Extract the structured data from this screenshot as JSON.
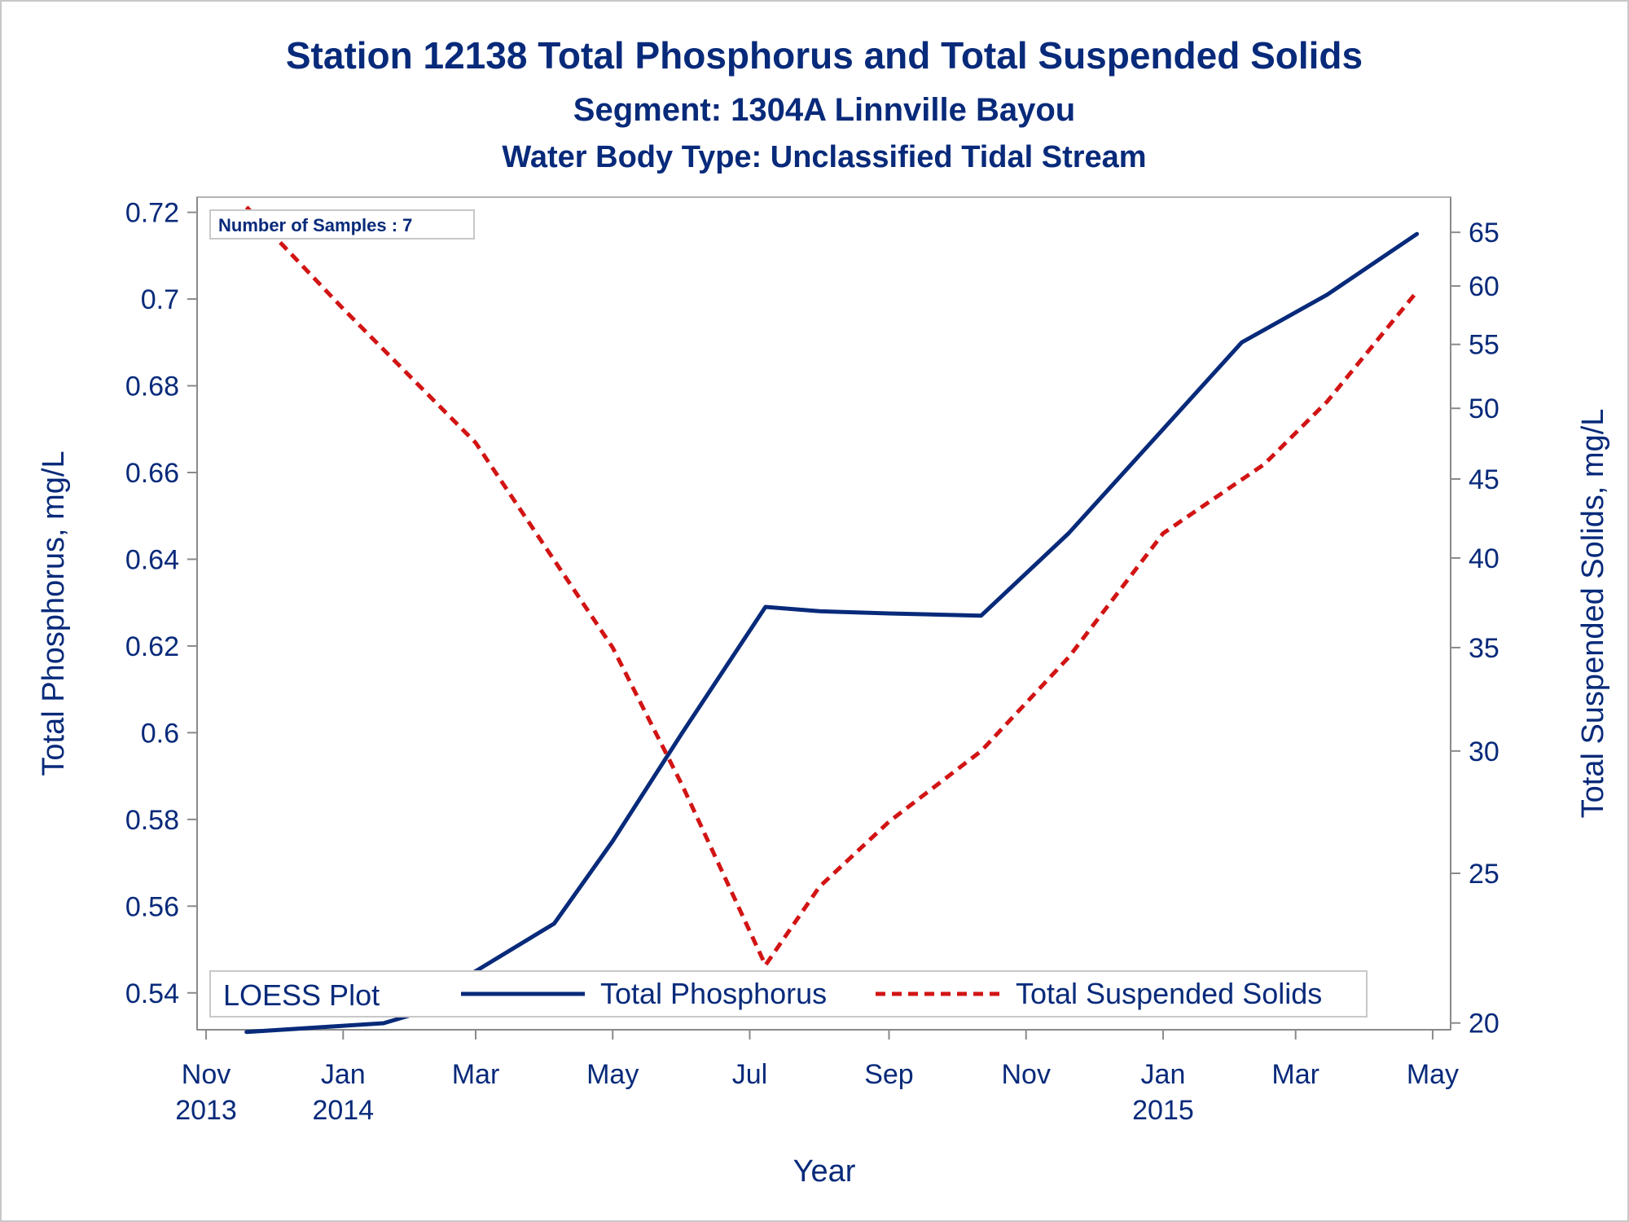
{
  "chart_data": {
    "type": "line",
    "title": "Station 12138  Total Phosphorus and Total Suspended Solids",
    "subtitle": "Segment: 1304A  Linnville Bayou",
    "subtitle2": "Water Body Type: Unclassified Tidal Stream",
    "xlabel": "Year",
    "ylabel_left": "Total Phosphorus, mg/L",
    "ylabel_right": "Total Suspended Solids, mg/L",
    "inset_label": "Number of Samples : 7",
    "legend_title": "LOESS Plot",
    "legend_placement": "bottom-inside",
    "x_ticks": [
      {
        "line1": "Nov",
        "line2": "2013",
        "date": "2013-11-01"
      },
      {
        "line1": "Jan",
        "line2": "2014",
        "date": "2014-01-01"
      },
      {
        "line1": "Mar",
        "line2": "",
        "date": "2014-03-01"
      },
      {
        "line1": "May",
        "line2": "",
        "date": "2014-05-01"
      },
      {
        "line1": "Jul",
        "line2": "",
        "date": "2014-07-01"
      },
      {
        "line1": "Sep",
        "line2": "",
        "date": "2014-09-01"
      },
      {
        "line1": "Nov",
        "line2": "",
        "date": "2014-11-01"
      },
      {
        "line1": "Jan",
        "line2": "2015",
        "date": "2015-01-01"
      },
      {
        "line1": "Mar",
        "line2": "",
        "date": "2015-03-01"
      },
      {
        "line1": "May",
        "line2": "",
        "date": "2015-05-01"
      }
    ],
    "xlim": [
      "2013-10-28",
      "2015-05-09"
    ],
    "y_left": {
      "ticks": [
        0.54,
        0.56,
        0.58,
        0.6,
        0.62,
        0.64,
        0.66,
        0.68,
        0.7,
        0.72
      ],
      "ylim": [
        0.5315,
        0.7235
      ]
    },
    "y_right": {
      "scale": "log",
      "ticks": [
        20,
        25,
        30,
        35,
        40,
        45,
        50,
        55,
        60,
        65
      ],
      "ylim": [
        19.8,
        68.5
      ]
    },
    "series": [
      {
        "name": "Total Phosphorus",
        "axis": "left",
        "color": "#082a7a",
        "style": "solid",
        "points": [
          [
            "2013-11-19",
            0.531
          ],
          [
            "2013-12-20",
            0.532
          ],
          [
            "2014-01-19",
            0.533
          ],
          [
            "2014-02-01",
            0.535
          ],
          [
            "2014-03-01",
            0.545
          ],
          [
            "2014-04-05",
            0.556
          ],
          [
            "2014-05-01",
            0.575
          ],
          [
            "2014-06-01",
            0.6
          ],
          [
            "2014-07-08",
            0.629
          ],
          [
            "2014-08-01",
            0.628
          ],
          [
            "2014-09-01",
            0.6275
          ],
          [
            "2014-10-12",
            0.627
          ],
          [
            "2014-11-20",
            0.646
          ],
          [
            "2015-01-01",
            0.67
          ],
          [
            "2015-02-05",
            0.69
          ],
          [
            "2015-03-15",
            0.701
          ],
          [
            "2015-04-24",
            0.715
          ]
        ]
      },
      {
        "name": "Total Suspended Solids",
        "axis": "right",
        "color": "#d21414",
        "style": "dashed",
        "points": [
          [
            "2013-11-19",
            67.5
          ],
          [
            "2014-01-01",
            58.0
          ],
          [
            "2014-03-01",
            47.5
          ],
          [
            "2014-05-01",
            35.0
          ],
          [
            "2014-06-01",
            28.5
          ],
          [
            "2014-07-08",
            21.8
          ],
          [
            "2014-08-01",
            24.5
          ],
          [
            "2014-09-01",
            27.0
          ],
          [
            "2014-10-12",
            30.0
          ],
          [
            "2014-11-20",
            34.5
          ],
          [
            "2015-01-01",
            41.5
          ],
          [
            "2015-02-15",
            46.0
          ],
          [
            "2015-03-15",
            50.5
          ],
          [
            "2015-04-24",
            59.5
          ]
        ]
      }
    ]
  }
}
